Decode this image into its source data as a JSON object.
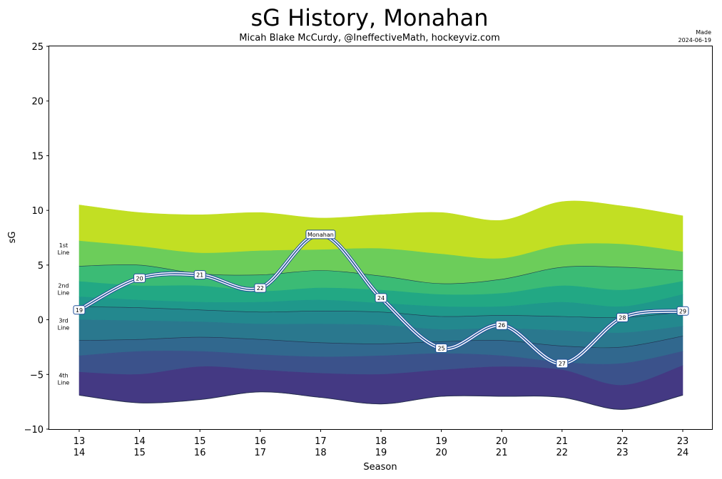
{
  "chart_data": {
    "type": "area",
    "title": "sG History, Monahan",
    "subtitle": "Micah Blake McCurdy, @IneffectiveMath, hockeyviz.com",
    "made_label": "Made",
    "made_date": "2024-06-19",
    "xlabel": "Season",
    "ylabel": "sG",
    "ylim": [
      -10,
      25
    ],
    "yticks": [
      -10,
      -5,
      0,
      5,
      10,
      15,
      20,
      25
    ],
    "seasons": [
      {
        "top": "13",
        "bottom": "14"
      },
      {
        "top": "14",
        "bottom": "15"
      },
      {
        "top": "15",
        "bottom": "16"
      },
      {
        "top": "16",
        "bottom": "17"
      },
      {
        "top": "17",
        "bottom": "18"
      },
      {
        "top": "18",
        "bottom": "19"
      },
      {
        "top": "19",
        "bottom": "20"
      },
      {
        "top": "20",
        "bottom": "21"
      },
      {
        "top": "21",
        "bottom": "22"
      },
      {
        "top": "22",
        "bottom": "23"
      },
      {
        "top": "23",
        "bottom": "24"
      }
    ],
    "band_labels": [
      {
        "line1": "1st",
        "line2": "Line",
        "y": 6.5
      },
      {
        "line1": "2nd",
        "line2": "Line",
        "y": 2.8
      },
      {
        "line1": "3rd",
        "line2": "Line",
        "y": -0.4
      },
      {
        "line1": "4th",
        "line2": "Line",
        "y": -5.4
      }
    ],
    "band_colors": [
      "#c2df23",
      "#6ccd5a",
      "#3bbb75",
      "#22a884",
      "#1f988b",
      "#23888e",
      "#2a788e",
      "#31688e",
      "#3b528b",
      "#443983"
    ],
    "boundary_color": "#1f2a44",
    "boundaries": [
      [
        10.5,
        9.8,
        9.6,
        9.8,
        9.3,
        9.6,
        9.8,
        9.1,
        10.8,
        10.4,
        9.5
      ],
      [
        7.2,
        6.7,
        6.1,
        6.3,
        6.4,
        6.5,
        6.0,
        5.6,
        6.8,
        6.9,
        6.2
      ],
      [
        4.9,
        5.0,
        4.2,
        4.1,
        4.5,
        4.0,
        3.3,
        3.7,
        4.8,
        4.8,
        4.5
      ],
      [
        3.5,
        3.1,
        3.1,
        2.6,
        2.9,
        2.7,
        2.3,
        2.4,
        3.1,
        2.7,
        3.5
      ],
      [
        2.1,
        1.8,
        1.6,
        1.6,
        1.8,
        1.5,
        1.2,
        1.2,
        1.6,
        1.2,
        2.3
      ],
      [
        1.2,
        1.1,
        0.9,
        0.7,
        0.8,
        0.7,
        0.3,
        0.4,
        0.3,
        0.2,
        0.7
      ],
      [
        0.0,
        -0.1,
        -0.2,
        -0.4,
        -0.4,
        -0.5,
        -0.9,
        -0.8,
        -1.0,
        -1.2,
        -0.6
      ],
      [
        -1.9,
        -1.8,
        -1.6,
        -1.8,
        -2.1,
        -2.2,
        -2.0,
        -1.9,
        -2.4,
        -2.5,
        -1.5
      ],
      [
        -3.3,
        -2.9,
        -2.9,
        -3.2,
        -3.4,
        -3.3,
        -3.1,
        -3.3,
        -3.9,
        -4.0,
        -2.9
      ],
      [
        -4.8,
        -5.0,
        -4.3,
        -4.6,
        -4.9,
        -5.0,
        -4.6,
        -4.3,
        -4.6,
        -6.0,
        -4.2
      ],
      [
        -6.9,
        -7.6,
        -7.3,
        -6.6,
        -7.1,
        -7.7,
        -7.0,
        -7.0,
        -7.1,
        -8.2,
        -6.9
      ]
    ],
    "series": [
      {
        "name": "Monahan",
        "line_color": "#1f4e99",
        "points": [
          {
            "season_index": 0,
            "y": 0.9,
            "label": "19"
          },
          {
            "season_index": 1,
            "y": 3.8,
            "label": "20"
          },
          {
            "season_index": 2,
            "y": 4.1,
            "label": "21"
          },
          {
            "season_index": 3,
            "y": 2.9,
            "label": "22"
          },
          {
            "season_index": 4,
            "y": 7.8,
            "label": "Monahan"
          },
          {
            "season_index": 5,
            "y": 2.0,
            "label": "24"
          },
          {
            "season_index": 6,
            "y": -2.6,
            "label": "25"
          },
          {
            "season_index": 7,
            "y": -0.5,
            "label": "26"
          },
          {
            "season_index": 8,
            "y": -4.0,
            "label": "27"
          },
          {
            "season_index": 9,
            "y": 0.2,
            "label": "28"
          },
          {
            "season_index": 10,
            "y": 0.8,
            "label": "29"
          }
        ]
      }
    ]
  }
}
